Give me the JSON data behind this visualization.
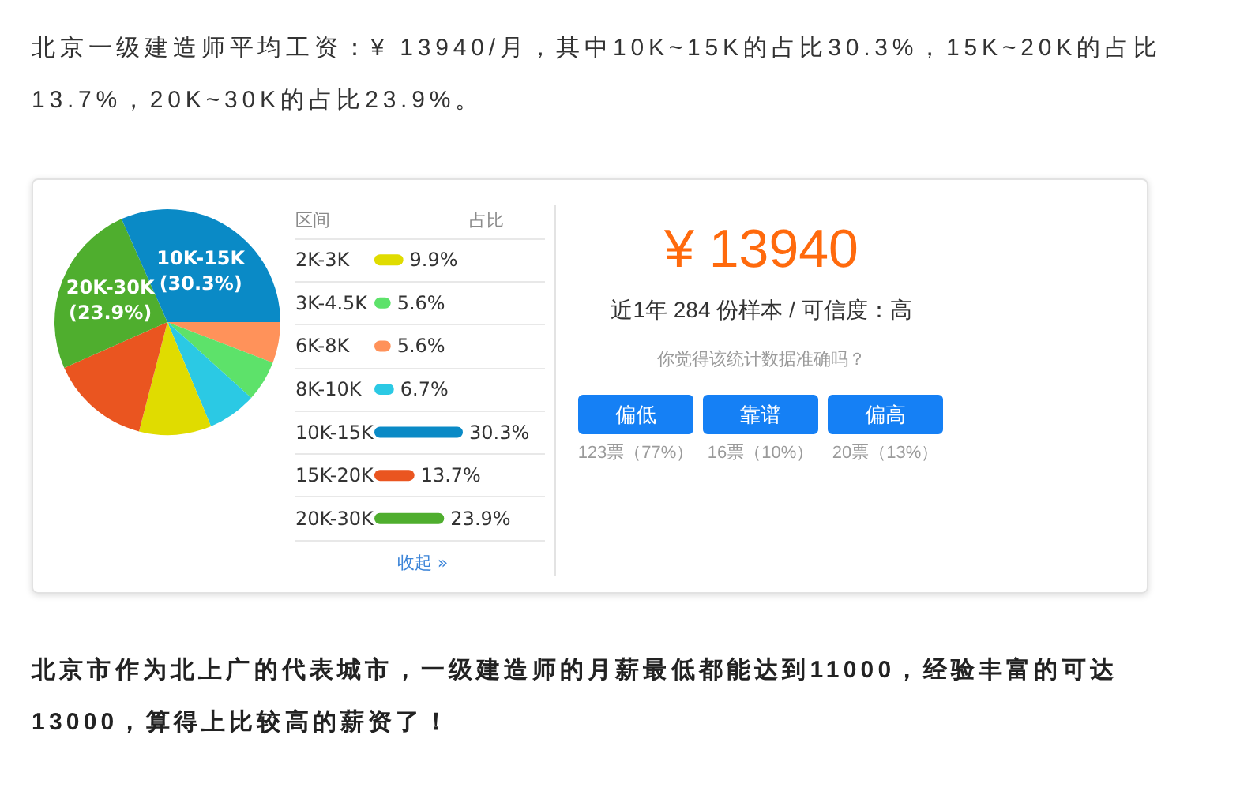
{
  "chart_data": [
    {
      "type": "pie",
      "title": "北京一级建造师平均工资：¥ 13940/月，其中10K~15K的占比30.3%，15K~20K的占比13.7%，20K~30K的占比23.9%。",
      "categories": [
        null,
        null,
        null,
        null,
        null,
        "20K-30K",
        "10K-15K"
      ],
      "values": [
        5.6,
        5.6,
        6.7,
        9.9,
        13.7,
        23.9,
        30.3
      ],
      "colors": [
        "#ff925a",
        "#5de26a",
        "#2bc9e4",
        "#e0dc00",
        "#ea5520",
        "#4fae2e",
        "#0a8ac6"
      ],
      "value_labels": [
        null,
        null,
        null,
        null,
        null,
        "(23.9%)",
        "(30.3%)"
      ],
      "annotations": [
        "北京市作为北上广的代表城市，一级建造师的月薪最低都能达到11000，经验丰富的可达13000，算得上比较高的薪资了！"
      ]
    },
    {
      "type": "bar",
      "orientation": "horizontal",
      "ylabel": "区间",
      "xlabel": "占比",
      "categories": [
        "2K-3K",
        "3K-4.5K",
        "6K-8K",
        "8K-10K",
        "10K-15K",
        "15K-20K",
        "20K-30K"
      ],
      "values": [
        9.9,
        5.6,
        5.6,
        6.7,
        30.3,
        13.7,
        23.9
      ],
      "colors": [
        "#e0dc00",
        "#5de26a",
        "#ff925a",
        "#2bc9e4",
        "#0a8ac6",
        "#ea5520",
        "#4fae2e"
      ],
      "value_labels": [
        "9.9%",
        "5.6%",
        "5.6%",
        "6.7%",
        "30.3%",
        "13.7%",
        "23.9%"
      ],
      "grid": "y",
      "annotations": [
        "收起 »"
      ]
    },
    {
      "type": "other",
      "title": "¥ 13940",
      "subtitle": "近1年 284 份样本 / 可信度：高",
      "annotations": [
        "你觉得该统计数据准确吗？",
        "偏低",
        "靠谱",
        "偏高",
        "123票（77%）",
        "16票（10%）",
        "20票（13%）"
      ]
    }
  ]
}
